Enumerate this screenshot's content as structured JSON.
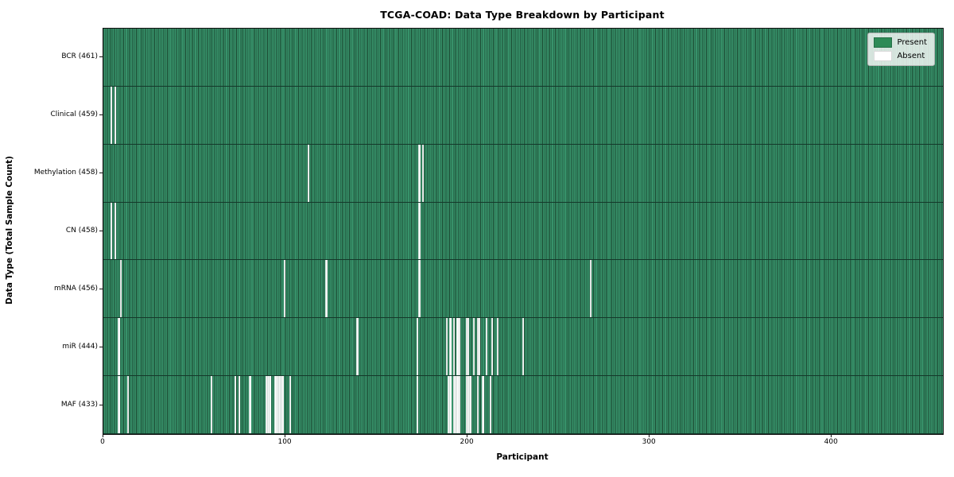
{
  "title": "TCGA-COAD: Data Type Breakdown by Participant",
  "xlabel": "Participant",
  "ylabel": "Data Type (Total Sample Count)",
  "legend": {
    "present_label": "Present",
    "absent_label": "Absent"
  },
  "colors": {
    "present": "#2e8b57",
    "present_light": "#37926a",
    "cell_edge": "#1b4831",
    "absent": "#ffffff",
    "legend_background": "rgba(255,255,255,0.8)"
  },
  "x_ticks": [
    0,
    100,
    200,
    300,
    400
  ],
  "chart_data": {
    "type": "heatmap",
    "title": "TCGA-COAD: Data Type Breakdown by Participant",
    "xlabel": "Participant",
    "ylabel": "Data Type (Total Sample Count)",
    "x_range": [
      0,
      461
    ],
    "grid": false,
    "legend_position": "upper right",
    "legend_entries": [
      "Present",
      "Absent"
    ],
    "value_encoding": {
      "present": "green cell",
      "absent": "white cell"
    },
    "rows": [
      {
        "name": "bcr",
        "label": "BCR (461)",
        "present_count": 461,
        "absent_participants": []
      },
      {
        "name": "clinical",
        "label": "Clinical (459)",
        "present_count": 459,
        "absent_participants": [
          4,
          6
        ]
      },
      {
        "name": "methylation",
        "label": "Methylation (458)",
        "present_count": 458,
        "absent_participants": [
          112,
          173,
          175
        ]
      },
      {
        "name": "cn",
        "label": "CN (458)",
        "present_count": 458,
        "absent_participants": [
          4,
          6,
          173
        ]
      },
      {
        "name": "mrna",
        "label": "mRNA (456)",
        "present_count": 456,
        "absent_participants": [
          9,
          99,
          122,
          173,
          267
        ]
      },
      {
        "name": "mir",
        "label": "miR (444)",
        "present_count": 444,
        "absent_participants": [
          8,
          139,
          172,
          188,
          190,
          192,
          194,
          195,
          199,
          200,
          203,
          205,
          206,
          210,
          213,
          216,
          230
        ]
      },
      {
        "name": "maf",
        "label": "MAF (433)",
        "present_count": 433,
        "absent_participants": [
          8,
          13,
          59,
          72,
          74,
          80,
          89,
          90,
          91,
          94,
          95,
          96,
          97,
          98,
          102,
          172,
          189,
          190,
          192,
          193,
          194,
          195,
          199,
          200,
          201,
          205,
          208,
          212
        ]
      }
    ]
  }
}
